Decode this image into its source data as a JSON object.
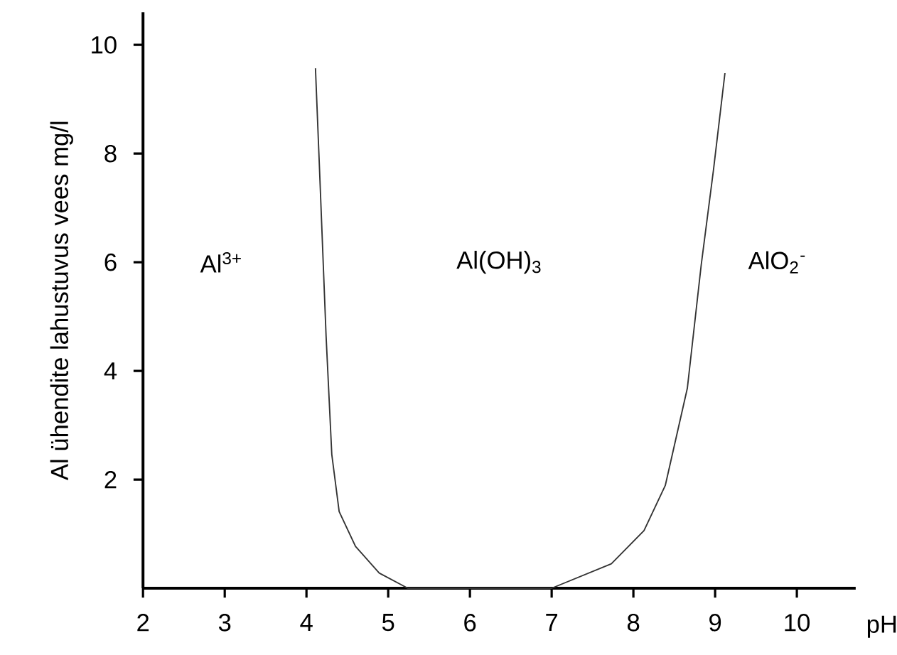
{
  "chart_data": {
    "type": "line",
    "xlabel": "pH",
    "ylabel": "Al ühendite lahustuvus vees mg/l",
    "xlim": [
      2,
      10.72
    ],
    "ylim": [
      0,
      10.6
    ],
    "xticks": [
      2,
      3,
      4,
      5,
      6,
      7,
      8,
      9,
      10
    ],
    "yticks": [
      2,
      4,
      6,
      8,
      10
    ],
    "series": [
      {
        "color": "#333333",
        "x": [
          4.11,
          4.16,
          4.24,
          4.31,
          4.4,
          4.6,
          4.89,
          5.24,
          7.0,
          7.73,
          8.13,
          8.39,
          8.66,
          8.83,
          8.98,
          9.12
        ],
        "values": [
          9.57,
          7.7,
          4.64,
          2.46,
          1.41,
          0.77,
          0.28,
          0,
          0,
          0.45,
          1.06,
          1.89,
          3.68,
          5.95,
          7.7,
          9.48
        ]
      }
    ],
    "annotations": [
      "Al$^{3+}$",
      "Al(OH)$_{3}$",
      "AlO$_{2}$$^{-}$"
    ],
    "grid": false,
    "marker": "none",
    "line_style": "solid"
  }
}
